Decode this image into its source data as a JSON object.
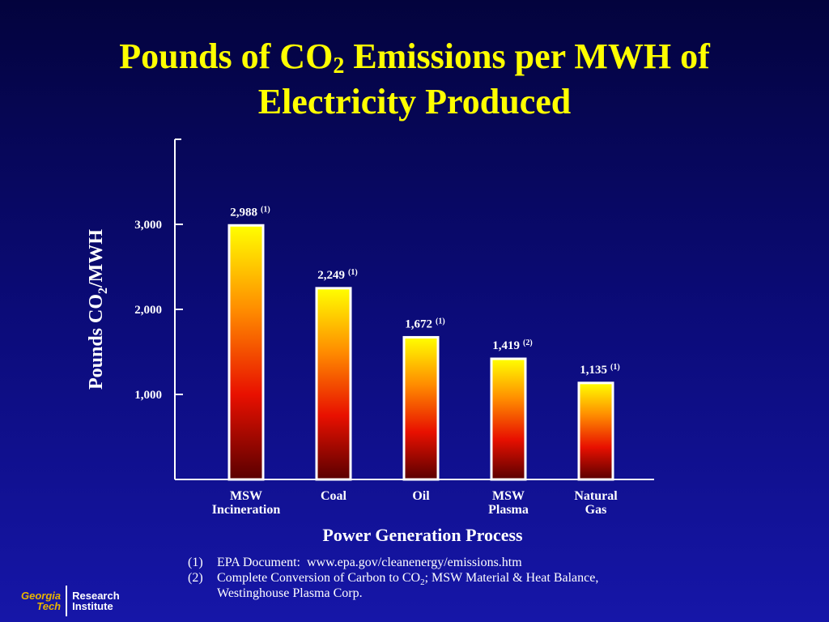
{
  "chart_data": {
    "type": "bar",
    "title": [
      "Pounds of CO",
      "2",
      " Emissions per MWH of",
      "Electricity Produced"
    ],
    "ylabel": [
      "Pounds CO",
      "2",
      "/MWH"
    ],
    "xlabel": "Power Generation Process",
    "categories": [
      [
        "MSW",
        "Incineration"
      ],
      [
        "Coal"
      ],
      [
        "Oil"
      ],
      [
        "MSW",
        "Plasma"
      ],
      [
        "Natural",
        "Gas"
      ]
    ],
    "values": [
      2988,
      2249,
      1672,
      1419,
      1135
    ],
    "value_labels": [
      "2,988",
      "2,249",
      "1,672",
      "1,419",
      "1,135"
    ],
    "value_notes": [
      "(1)",
      "(1)",
      "(1)",
      "(2)",
      "(1)"
    ],
    "color": [
      "#ffff00",
      "#ff8c00",
      "#e81000",
      "#5a0000"
    ],
    "ylim": [
      0,
      4000
    ],
    "yticks": [
      {
        "value": 1000,
        "label": "1,000"
      },
      {
        "value": 2000,
        "label": "2,000"
      },
      {
        "value": 3000,
        "label": "3,000"
      }
    ],
    "notes": [
      {
        "marker": "(1)",
        "text": [
          "EPA Document:  www.epa.gov/cleanenergy/emissions.htm"
        ]
      },
      {
        "marker": "(2)",
        "text": [
          "Complete Conversion of Carbon to CO",
          "2",
          "; MSW Material & Heat Balance, Westinghouse Plasma Corp."
        ]
      }
    ]
  },
  "logo": [
    "Georgia",
    "Tech",
    "Research",
    "Institute"
  ]
}
